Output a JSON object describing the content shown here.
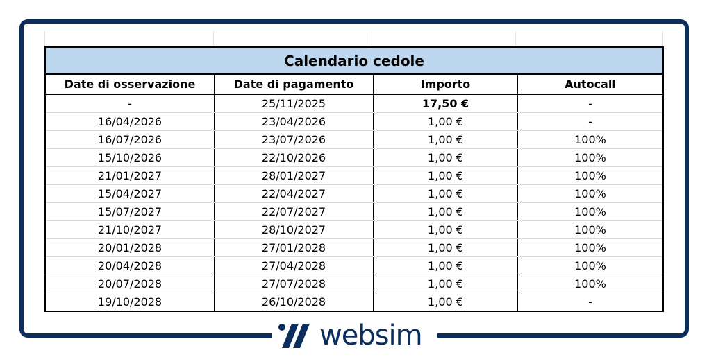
{
  "table": {
    "title": "Calendario cedole",
    "headers": [
      "Date di osservazione",
      "Date di pagamento",
      "Importo",
      "Autocall"
    ],
    "rows": [
      [
        "-",
        "25/11/2025",
        "17,50 €",
        "-"
      ],
      [
        "16/04/2026",
        "23/04/2026",
        "1,00 €",
        "-"
      ],
      [
        "16/07/2026",
        "23/07/2026",
        "1,00 €",
        "100%"
      ],
      [
        "15/10/2026",
        "22/10/2026",
        "1,00 €",
        "100%"
      ],
      [
        "21/01/2027",
        "28/01/2027",
        "1,00 €",
        "100%"
      ],
      [
        "15/04/2027",
        "22/04/2027",
        "1,00 €",
        "100%"
      ],
      [
        "15/07/2027",
        "22/07/2027",
        "1,00 €",
        "100%"
      ],
      [
        "21/10/2027",
        "28/10/2027",
        "1,00 €",
        "100%"
      ],
      [
        "20/01/2028",
        "27/01/2028",
        "1,00 €",
        "100%"
      ],
      [
        "20/04/2028",
        "27/04/2028",
        "1,00 €",
        "100%"
      ],
      [
        "20/07/2028",
        "27/07/2028",
        "1,00 €",
        "100%"
      ],
      [
        "19/10/2028",
        "26/10/2028",
        "1,00 €",
        "-"
      ]
    ]
  },
  "logo": {
    "text": "websim",
    "icon": "websim-logo-icon"
  },
  "colors": {
    "frame": "#0b2e5c",
    "title_bg": "#bdd7ee"
  }
}
